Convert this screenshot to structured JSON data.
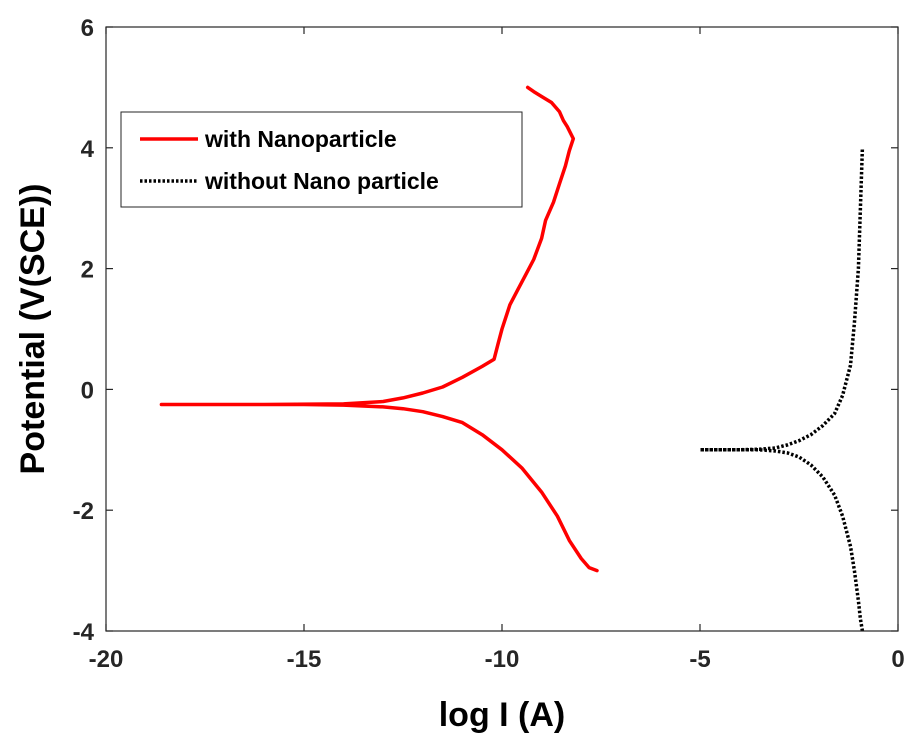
{
  "chart_data": {
    "type": "line",
    "title": "",
    "xlabel": "log I (A)",
    "ylabel": "Potential (V(SCE))",
    "xlim": [
      -20,
      0
    ],
    "ylim": [
      -4,
      6
    ],
    "xticks": [
      "-20",
      "-15",
      "-10",
      "-5",
      "0"
    ],
    "yticks": [
      "-4",
      "-2",
      "0",
      "2",
      "4",
      "6"
    ],
    "grid": false,
    "legend_position": "top-left",
    "series": [
      {
        "name": "with Nanoparticle",
        "color": "#ff0000",
        "style": "solid",
        "x": [
          -7.6,
          -7.8,
          -8.0,
          -8.3,
          -8.6,
          -9.0,
          -9.5,
          -10.0,
          -10.5,
          -11.0,
          -11.5,
          -12.0,
          -12.5,
          -13.0,
          -14.0,
          -15.0,
          -16.0,
          -17.0,
          -18.0,
          -18.6,
          -18.0,
          -16.0,
          -14.0,
          -13.0,
          -12.5,
          -12.0,
          -11.5,
          -11.0,
          -10.5,
          -10.2,
          -10.1,
          -10.0,
          -9.8,
          -9.6,
          -9.4,
          -9.2,
          -9.0,
          -8.9,
          -8.7,
          -8.55,
          -8.4,
          -8.3,
          -8.2,
          -8.35,
          -8.45,
          -8.55,
          -8.75,
          -9.0,
          -9.2,
          -9.35
        ],
        "y": [
          -3.0,
          -2.95,
          -2.8,
          -2.5,
          -2.1,
          -1.7,
          -1.3,
          -1.0,
          -0.75,
          -0.55,
          -0.45,
          -0.37,
          -0.32,
          -0.29,
          -0.26,
          -0.25,
          -0.25,
          -0.25,
          -0.25,
          -0.25,
          -0.25,
          -0.25,
          -0.24,
          -0.2,
          -0.14,
          -0.06,
          0.04,
          0.2,
          0.38,
          0.5,
          0.75,
          1.0,
          1.4,
          1.65,
          1.9,
          2.15,
          2.5,
          2.8,
          3.1,
          3.4,
          3.7,
          3.95,
          4.15,
          4.35,
          4.45,
          4.6,
          4.75,
          4.85,
          4.93,
          5.0
        ]
      },
      {
        "name": "without Nano particle",
        "color": "#000000",
        "style": "dotted",
        "x": [
          -0.9,
          -0.95,
          -1.0,
          -1.1,
          -1.2,
          -1.4,
          -1.6,
          -1.9,
          -2.2,
          -2.5,
          -2.8,
          -3.1,
          -3.5,
          -4.0,
          -5.0,
          -4.0,
          -3.5,
          -3.1,
          -2.8,
          -2.5,
          -2.2,
          -1.9,
          -1.6,
          -1.4,
          -1.2,
          -1.1,
          -1.0,
          -0.95,
          -0.9
        ],
        "y": [
          -4.0,
          -3.8,
          -3.5,
          -3.0,
          -2.6,
          -2.1,
          -1.75,
          -1.45,
          -1.25,
          -1.12,
          -1.05,
          -1.02,
          -1.0,
          -1.0,
          -1.0,
          -1.0,
          -0.99,
          -0.97,
          -0.92,
          -0.85,
          -0.75,
          -0.6,
          -0.4,
          -0.1,
          0.4,
          1.1,
          2.0,
          3.0,
          4.0
        ]
      }
    ]
  }
}
